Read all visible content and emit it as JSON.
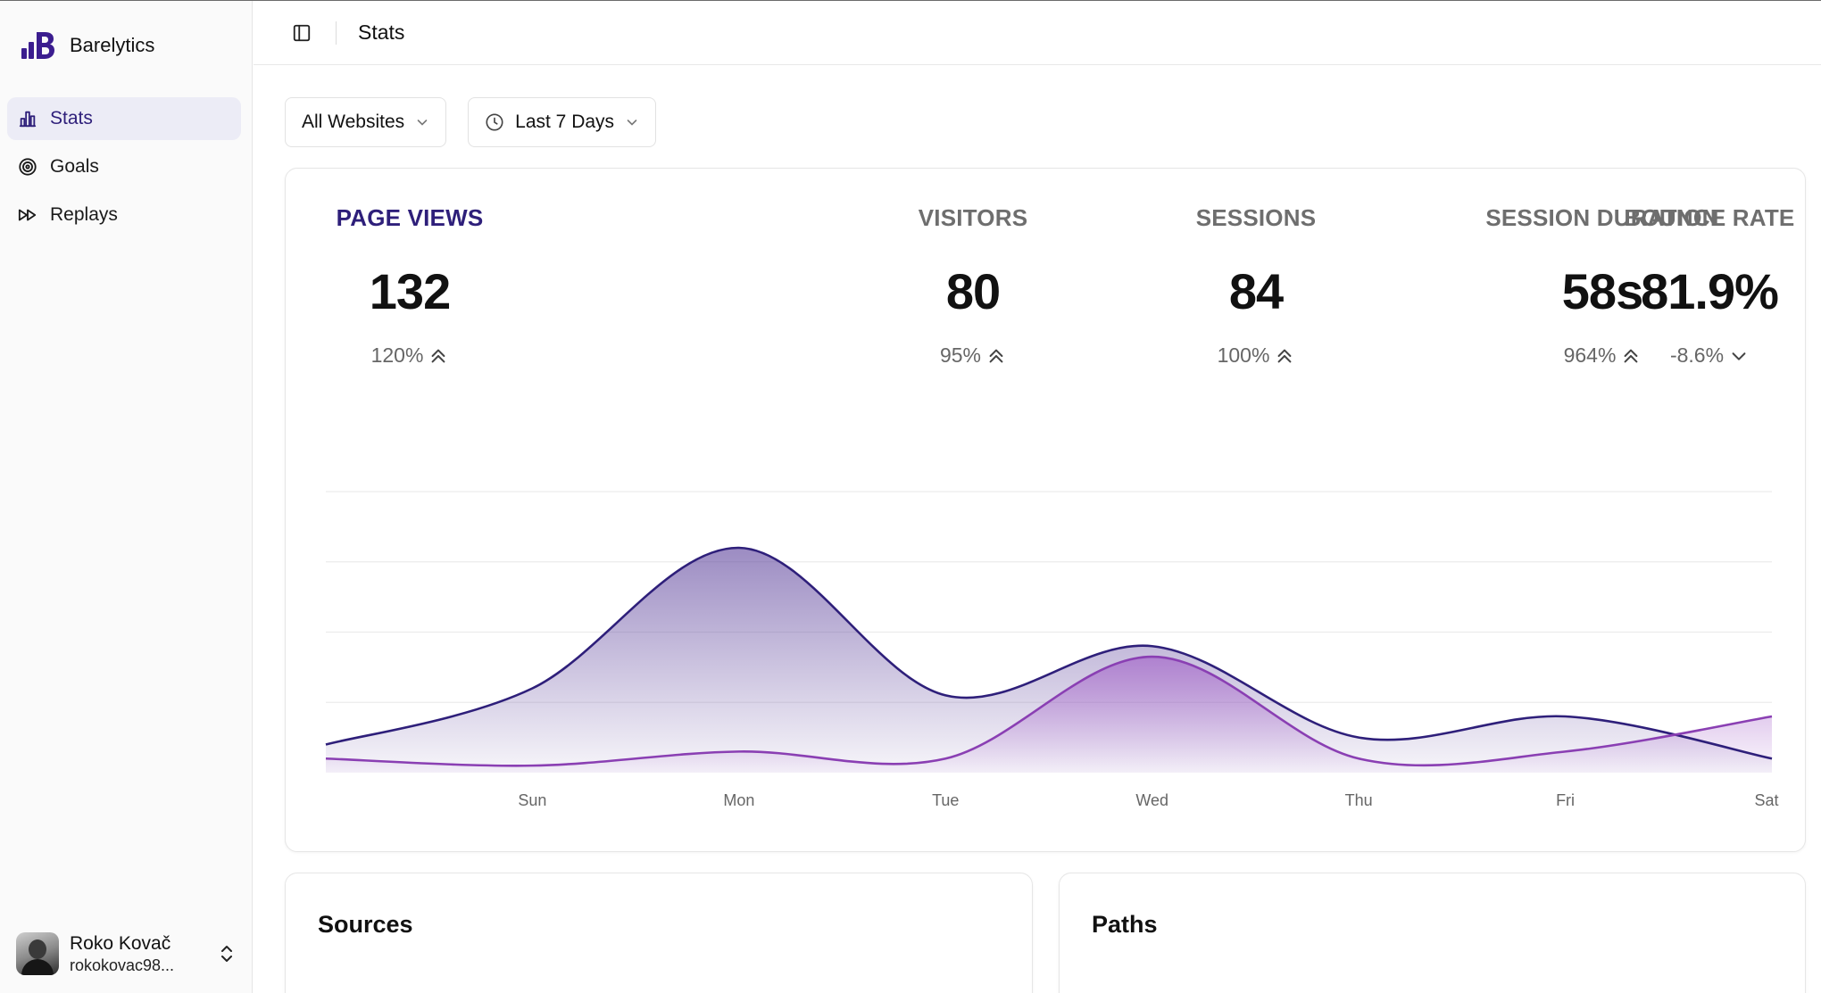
{
  "brand": {
    "name": "Barelytics",
    "logo_icon": "barelytics-logo-icon",
    "color": "#3b1d8f"
  },
  "sidebar": {
    "items": [
      {
        "label": "Stats",
        "icon": "bar-chart-icon",
        "active": true
      },
      {
        "label": "Goals",
        "icon": "target-icon",
        "active": false
      },
      {
        "label": "Replays",
        "icon": "fast-forward-icon",
        "active": false
      }
    ]
  },
  "user": {
    "name": "Roko Kovač",
    "email": "rokokovac98..."
  },
  "header": {
    "title": "Stats",
    "toggle_icon": "sidebar-toggle-icon"
  },
  "filters": {
    "website": "All Websites",
    "range": "Last 7 Days"
  },
  "metrics": [
    {
      "label": "PAGE VIEWS",
      "value": "132",
      "change": "120%",
      "trend": "up",
      "active": true
    },
    {
      "label": "VISITORS",
      "value": "80",
      "change": "95%",
      "trend": "up",
      "active": false
    },
    {
      "label": "SESSIONS",
      "value": "84",
      "change": "100%",
      "trend": "up",
      "active": false
    },
    {
      "label": "SESSION DURATION",
      "value": "58s",
      "change": "964%",
      "trend": "up",
      "active": false
    },
    {
      "label": "BOUNCE RATE",
      "value": "81.9%",
      "change": "-8.6%",
      "trend": "down",
      "active": false
    }
  ],
  "chart_data": {
    "type": "area",
    "x": [
      "",
      "Sun",
      "Mon",
      "Tue",
      "Wed",
      "Thu",
      "Fri",
      "Sat"
    ],
    "ylim": [
      0,
      4
    ],
    "grid": true,
    "series": [
      {
        "values": [
          0.4,
          1.2,
          3.2,
          1.1,
          1.8,
          0.5,
          0.8,
          0.2
        ],
        "color": "#2e1f7a"
      },
      {
        "values": [
          0.2,
          0.1,
          0.3,
          0.2,
          1.65,
          0.2,
          0.3,
          0.8
        ],
        "color": "#8a3fb3"
      }
    ],
    "colors": {
      "primary": "#2e1f7a",
      "secondary": "#8a3fb3",
      "grid": "#ececec",
      "tick": "#666666"
    }
  },
  "panels": {
    "sources_title": "Sources",
    "paths_title": "Paths"
  }
}
